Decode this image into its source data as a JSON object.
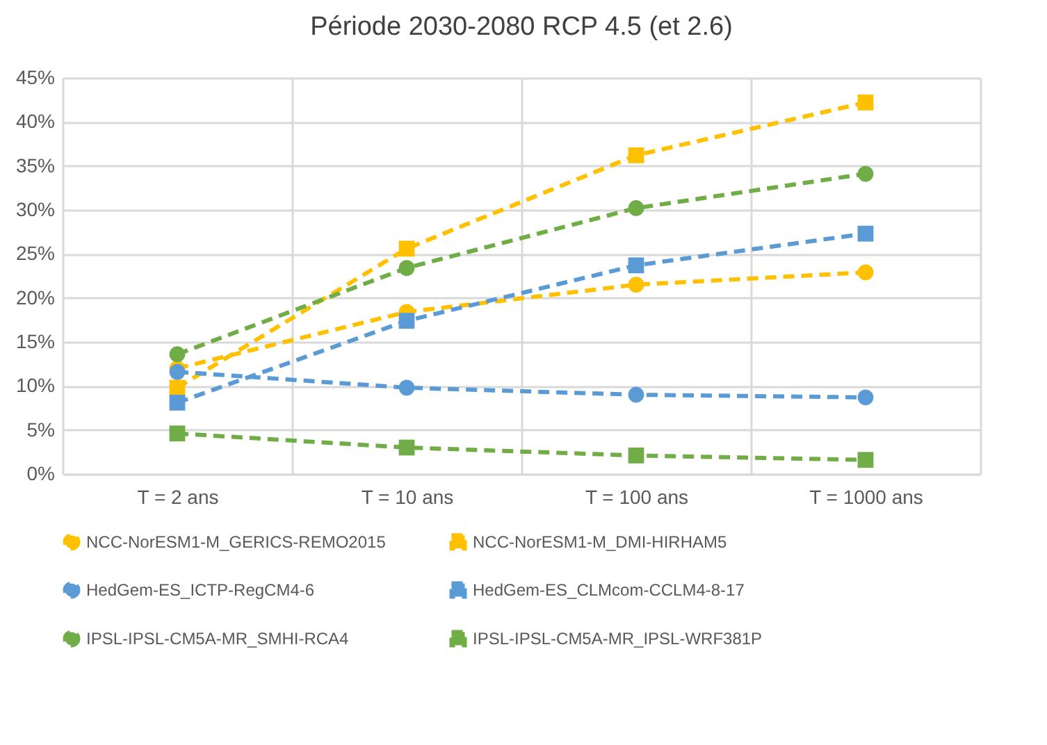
{
  "chart_data": {
    "type": "line",
    "title": "Période 2030-2080 RCP 4.5 (et 2.6)",
    "categories": [
      "T = 2 ans",
      "T = 10 ans",
      "T = 100 ans",
      "T = 1000 ans"
    ],
    "series": [
      {
        "name": "NCC-NorESM1-M_GERICS-REMO2015",
        "color": "#ffc000",
        "marker": "circle",
        "line_style": "dashed",
        "values": [
          12,
          18.4,
          21.5,
          22.9
        ]
      },
      {
        "name": "NCC-NorESM1-M_DMI-HIRHAM5",
        "color": "#ffc000",
        "marker": "square",
        "line_style": "dashed",
        "values": [
          9.8,
          25.6,
          36.2,
          42.2
        ]
      },
      {
        "name": "HedGem-ES_ICTP-RegCM4-6",
        "color": "#5b9bd5",
        "marker": "circle",
        "line_style": "dashed",
        "values": [
          11.6,
          9.8,
          9,
          8.7
        ]
      },
      {
        "name": "HedGem-ES_CLMcom-CCLM4-8-17",
        "color": "#5b9bd5",
        "marker": "square",
        "line_style": "dashed",
        "values": [
          8.1,
          17.4,
          23.7,
          27.3
        ]
      },
      {
        "name": "IPSL-IPSL-CM5A-MR_SMHI-RCA4",
        "color": "#70ad47",
        "marker": "circle",
        "line_style": "dashed",
        "values": [
          13.6,
          23.4,
          30.2,
          34.1
        ]
      },
      {
        "name": "IPSL-IPSL-CM5A-MR_IPSL-WRF381P",
        "color": "#70ad47",
        "marker": "square",
        "line_style": "dashed",
        "values": [
          4.6,
          3,
          2.1,
          1.6
        ]
      }
    ],
    "ylim": [
      0,
      45
    ],
    "yticks": [
      {
        "value": 0,
        "label": "0%"
      },
      {
        "value": 5,
        "label": "5%"
      },
      {
        "value": 10,
        "label": "10%"
      },
      {
        "value": 15,
        "label": "15%"
      },
      {
        "value": 20,
        "label": "20%"
      },
      {
        "value": 25,
        "label": "25%"
      },
      {
        "value": 30,
        "label": "30%"
      },
      {
        "value": 35,
        "label": "35%"
      },
      {
        "value": 40,
        "label": "40%"
      },
      {
        "value": 45,
        "label": "45%"
      }
    ],
    "grid": true,
    "legend": "bottom"
  }
}
